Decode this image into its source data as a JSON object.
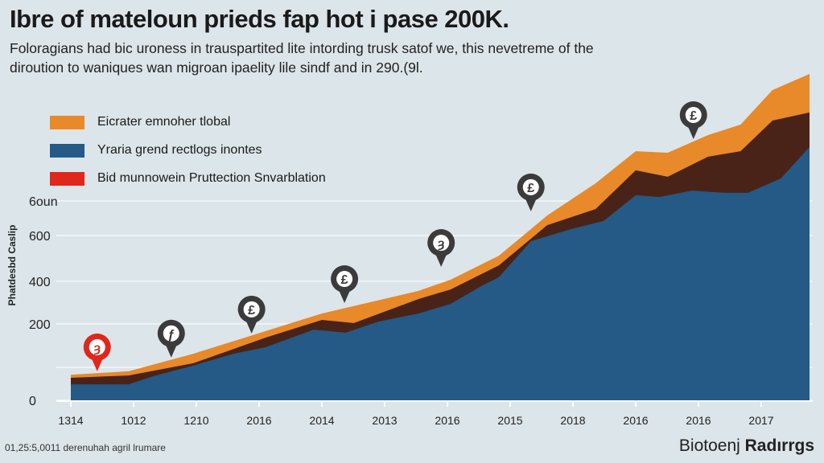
{
  "header": {
    "title": "Ibre of mateloun prieds fap hot i pase 200K.",
    "subtitle": "Foloragians had bic uroness in trauspartited lite intording trusk satof we, this nevetreme of the diroution to waniques wan migroan ipaelity lile sindf and in 290.(9l."
  },
  "footer": {
    "note": "01,25:5,0011 derenuhah agril lrumare",
    "brand_light": "Biotoenj",
    "brand_bold": "Radırrgs"
  },
  "colors": {
    "orange": "#e8892a",
    "brown": "#4a2318",
    "blue": "#245a85",
    "red": "#e0271c",
    "pin": "#3b3b3b",
    "background": "#dce5e9"
  },
  "chart_data": {
    "type": "area",
    "stacked": true,
    "title": "Ibre of mateloun prieds fap hot i pase 200K.",
    "ylabel": "Phatdesbd Caslip",
    "xlabel": "",
    "y_ticks": [
      {
        "value": 0,
        "label": "0"
      },
      {
        "value": 200,
        "label": "200"
      },
      {
        "value": 400,
        "label": "400"
      },
      {
        "value": 600,
        "label": "600"
      },
      {
        "value": 800,
        "label": "6oun"
      }
    ],
    "x_tick_labels": [
      "1314",
      "1012",
      "1210",
      "2016",
      "2014",
      "2013",
      "2016",
      "2015",
      "2018",
      "2016",
      "2016",
      "2017"
    ],
    "legend": [
      {
        "label": "Eicrater emnoher tlobal",
        "color": "#e8892a"
      },
      {
        "label": "Yraria grend rectlogs inontes",
        "color": "#245a85"
      },
      {
        "label": "Bid munnowein Pruttection Snvarblation",
        "color": "#e0271c"
      }
    ],
    "legend_position": "top-left",
    "grid": true,
    "series": [
      {
        "name": "Eicrater emnoher tlobal",
        "color": "#e8892a",
        "cumulative_top": [
          [
            0,
            67
          ],
          [
            0.92,
            76
          ],
          [
            1.95,
            122
          ],
          [
            3.1,
            181
          ],
          [
            4.0,
            249
          ],
          [
            5.54,
            355
          ],
          [
            6.05,
            407
          ],
          [
            6.82,
            512
          ],
          [
            7.59,
            716
          ],
          [
            8.36,
            902
          ],
          [
            9.0,
            1088
          ],
          [
            9.51,
            1079
          ],
          [
            10.15,
            1181
          ],
          [
            10.67,
            1242
          ],
          [
            11.18,
            1442
          ],
          [
            11.77,
            1535
          ]
        ]
      },
      {
        "name": "(unlabeled dark layer)",
        "color": "#4a2318",
        "cumulative_top": [
          [
            0,
            59
          ],
          [
            0.92,
            65
          ],
          [
            1.95,
            97
          ],
          [
            3.1,
            164
          ],
          [
            4.0,
            219
          ],
          [
            4.51,
            204
          ],
          [
            5.54,
            317
          ],
          [
            6.05,
            362
          ],
          [
            6.82,
            470
          ],
          [
            7.59,
            660
          ],
          [
            8.36,
            753
          ],
          [
            9.0,
            977
          ],
          [
            9.51,
            940
          ],
          [
            10.15,
            1056
          ],
          [
            10.67,
            1088
          ],
          [
            11.18,
            1265
          ],
          [
            11.77,
            1312
          ]
        ]
      },
      {
        "name": "Yraria grend rectlogs inontes",
        "color": "#245a85",
        "cumulative_top": [
          [
            0,
            42
          ],
          [
            0.92,
            42
          ],
          [
            1.31,
            63
          ],
          [
            1.95,
            91
          ],
          [
            2.59,
            122
          ],
          [
            3.1,
            139
          ],
          [
            3.87,
            185
          ],
          [
            4.38,
            177
          ],
          [
            4.9,
            211
          ],
          [
            5.54,
            249
          ],
          [
            6.05,
            294
          ],
          [
            6.56,
            381
          ],
          [
            6.82,
            418
          ],
          [
            7.33,
            575
          ],
          [
            7.97,
            637
          ],
          [
            8.49,
            684
          ],
          [
            9.0,
            833
          ],
          [
            9.38,
            823
          ],
          [
            9.9,
            860
          ],
          [
            10.41,
            847
          ],
          [
            10.79,
            847
          ],
          [
            11.31,
            930
          ],
          [
            11.77,
            1112
          ]
        ]
      }
    ],
    "annotations": [
      {
        "type": "pin",
        "x": 0.42,
        "y": 76,
        "glyph": "ȝ",
        "style": "red"
      },
      {
        "type": "pin",
        "x": 1.6,
        "y": 112,
        "glyph": "ƒ",
        "style": "dark"
      },
      {
        "type": "pin",
        "x": 2.88,
        "y": 175,
        "glyph": "£",
        "style": "dark"
      },
      {
        "type": "pin",
        "x": 4.36,
        "y": 298,
        "glyph": "£",
        "style": "dark"
      },
      {
        "type": "pin",
        "x": 5.9,
        "y": 463,
        "glyph": "ȝ",
        "style": "dark"
      },
      {
        "type": "pin",
        "x": 7.33,
        "y": 740,
        "glyph": "£",
        "style": "dark"
      },
      {
        "type": "pin",
        "x": 9.92,
        "y": 1158,
        "glyph": "£",
        "style": "dark"
      }
    ]
  }
}
